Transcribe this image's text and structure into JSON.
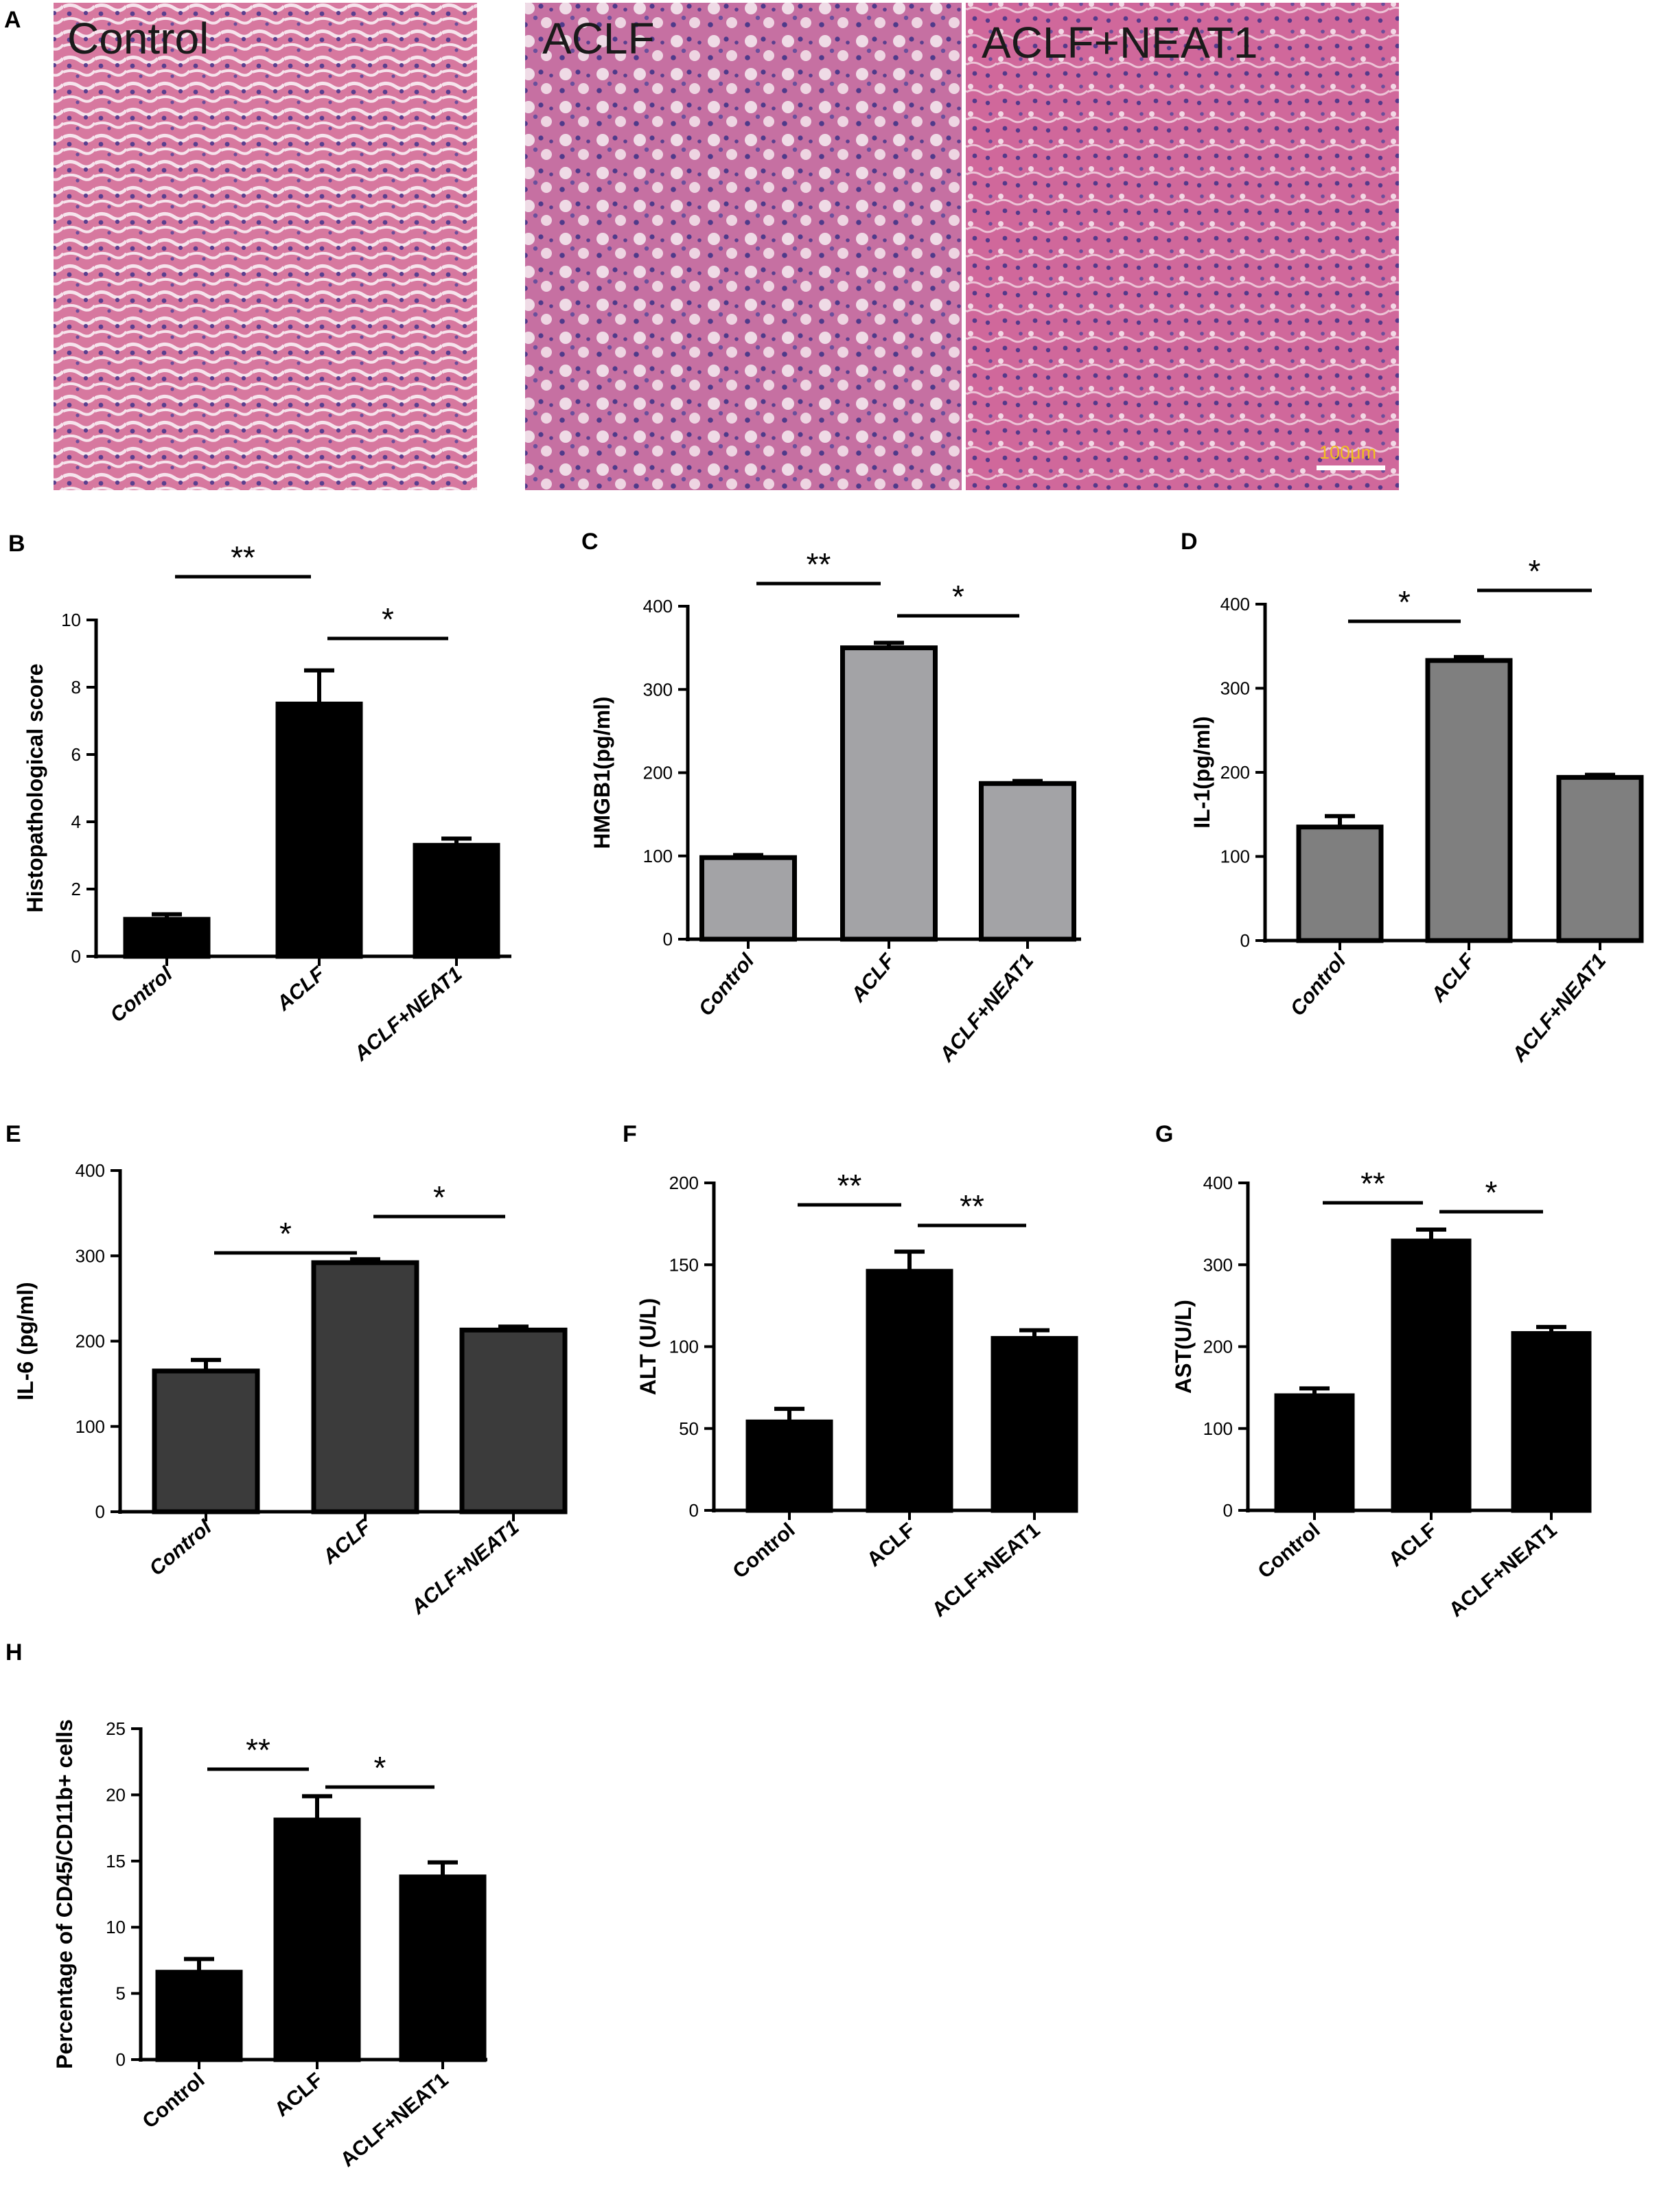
{
  "panel_a": {
    "letter": "A",
    "images": [
      {
        "label": "Control"
      },
      {
        "label": "ACLF"
      },
      {
        "label": "ACLF+NEAT1"
      }
    ],
    "scale_bar_label": "100μm",
    "colors": {
      "stain_base": "#d4709a",
      "nuclei": "#5a3f8e",
      "sinusoid": "#f4dde6",
      "scale_text": "#f0c020"
    }
  },
  "chart_data": [
    {
      "panel": "B",
      "type": "bar",
      "categories": [
        "Control",
        "ACLF",
        "ACLF+NEAT1"
      ],
      "values": [
        1.1,
        7.5,
        3.3
      ],
      "errors": [
        0.15,
        1.0,
        0.2
      ],
      "ylabel": "Histopathological score",
      "xlabel": "",
      "ylim": [
        0,
        10
      ],
      "yticks": [
        0,
        2,
        4,
        6,
        8,
        10
      ],
      "bar_color": "#000000",
      "italic_labels": true,
      "label_angle": 40,
      "significance": [
        {
          "from": 0,
          "to": 1,
          "label": "**"
        },
        {
          "from": 1,
          "to": 2,
          "label": "*"
        }
      ]
    },
    {
      "panel": "C",
      "type": "bar",
      "categories": [
        "Control",
        "ACLF",
        "ACLF+NEAT1"
      ],
      "values": [
        98,
        350,
        187
      ],
      "errors": [
        3,
        6,
        3
      ],
      "ylabel": "HMGB1(pg/ml)",
      "xlabel": "",
      "ylim": [
        0,
        400
      ],
      "yticks": [
        0,
        100,
        200,
        300,
        400
      ],
      "bar_color": "#a3a3a6",
      "italic_labels": true,
      "label_angle": 50,
      "significance": [
        {
          "from": 0,
          "to": 1,
          "label": "**"
        },
        {
          "from": 1,
          "to": 2,
          "label": "*"
        }
      ]
    },
    {
      "panel": "D",
      "type": "bar",
      "categories": [
        "Control",
        "ACLF",
        "ACLF+NEAT1"
      ],
      "values": [
        135,
        333,
        194
      ],
      "errors": [
        13,
        4,
        3
      ],
      "ylabel": "IL-1(pg/ml)",
      "xlabel": "",
      "ylim": [
        0,
        400
      ],
      "yticks": [
        0,
        100,
        200,
        300,
        400
      ],
      "bar_color": "#7f7f7f",
      "italic_labels": true,
      "label_angle": 50,
      "significance": [
        {
          "from": 0,
          "to": 1,
          "label": "*"
        },
        {
          "from": 1,
          "to": 2,
          "label": "*"
        }
      ]
    },
    {
      "panel": "E",
      "type": "bar",
      "categories": [
        "Control",
        "ACLF",
        "ACLF+NEAT1"
      ],
      "values": [
        165,
        292,
        213
      ],
      "errors": [
        13,
        4,
        4
      ],
      "ylabel": "IL-6 (pg/ml)",
      "xlabel": "",
      "ylim": [
        0,
        400
      ],
      "yticks": [
        0,
        100,
        200,
        300,
        400
      ],
      "bar_color": "#3b3b3b",
      "italic_labels": true,
      "label_angle": 40,
      "significance": [
        {
          "from": 0,
          "to": 1,
          "label": "*"
        },
        {
          "from": 1,
          "to": 2,
          "label": "*"
        }
      ]
    },
    {
      "panel": "F",
      "type": "bar",
      "categories": [
        "Control",
        "ACLF",
        "ACLF+NEAT1"
      ],
      "values": [
        54,
        146,
        105
      ],
      "errors": [
        8,
        12,
        5
      ],
      "ylabel": "ALT (U/L)",
      "xlabel": "",
      "ylim": [
        0,
        200
      ],
      "yticks": [
        0,
        50,
        100,
        150,
        200
      ],
      "bar_color": "#000000",
      "italic_labels": false,
      "label_angle": 40,
      "significance": [
        {
          "from": 0,
          "to": 1,
          "label": "**"
        },
        {
          "from": 1,
          "to": 2,
          "label": "**"
        }
      ]
    },
    {
      "panel": "G",
      "type": "bar",
      "categories": [
        "Control",
        "ACLF",
        "ACLF+NEAT1"
      ],
      "values": [
        140,
        329,
        216
      ],
      "errors": [
        9,
        14,
        8
      ],
      "ylabel": "AST(U/L)",
      "xlabel": "",
      "ylim": [
        0,
        400
      ],
      "yticks": [
        0,
        100,
        200,
        300,
        400
      ],
      "bar_color": "#000000",
      "italic_labels": false,
      "label_angle": 40,
      "significance": [
        {
          "from": 0,
          "to": 1,
          "label": "**"
        },
        {
          "from": 1,
          "to": 2,
          "label": "*"
        }
      ]
    },
    {
      "panel": "H",
      "type": "bar",
      "categories": [
        "Control",
        "ACLF",
        "ACLF+NEAT1"
      ],
      "values": [
        6.6,
        18.1,
        13.8
      ],
      "errors": [
        1.0,
        1.8,
        1.1
      ],
      "ylabel": "Percentage of CD45/CD11b+ cells",
      "xlabel": "",
      "ylim": [
        0,
        25
      ],
      "yticks": [
        0,
        5,
        10,
        15,
        20,
        25
      ],
      "bar_color": "#000000",
      "italic_labels": false,
      "label_angle": 40,
      "significance": [
        {
          "from": 0,
          "to": 1,
          "label": "**"
        },
        {
          "from": 1,
          "to": 2,
          "label": "*"
        }
      ]
    }
  ]
}
